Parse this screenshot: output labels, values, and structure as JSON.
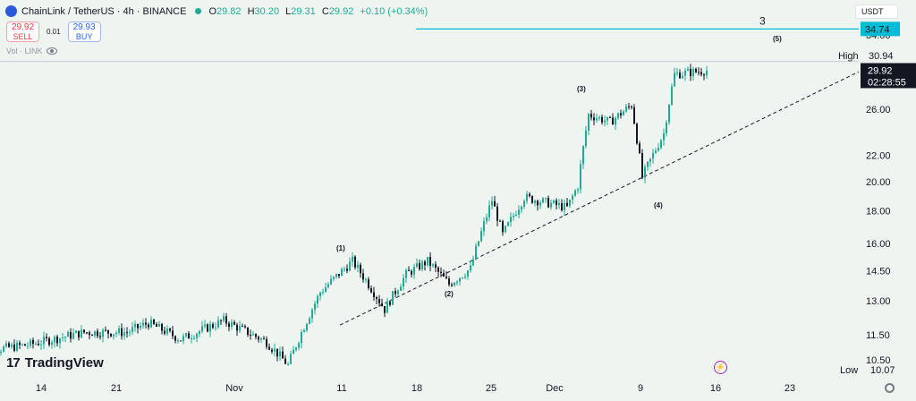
{
  "header": {
    "symbol_title": "ChainLink / TetherUS · 4h · BINANCE",
    "ohlc": [
      {
        "k": "O",
        "v": "29.82"
      },
      {
        "k": "H",
        "v": "30.20"
      },
      {
        "k": "L",
        "v": "29.31"
      },
      {
        "k": "C",
        "v": "29.92"
      }
    ],
    "change": "+0.10 (+0.34%)"
  },
  "trade": {
    "sell_price": "29.92",
    "sell_label": "SELL",
    "spread": "0.01",
    "buy_price": "29.93",
    "buy_label": "BUY"
  },
  "volume_label": "Vol · LINK",
  "currency": "USDT",
  "brand": "TradingView",
  "brand_mark": "17",
  "price_axis": {
    "ticks": [
      "34.00",
      "26.00",
      "22.00",
      "20.00",
      "18.00",
      "16.00",
      "14.50",
      "13.00",
      "11.50",
      "10.50"
    ],
    "high_label": "High",
    "high_value": "30.94",
    "low_label": "Low",
    "low_value": "10.07",
    "current_price": "29.92",
    "countdown": "02:28:55",
    "target_value": "34.74"
  },
  "time_axis": {
    "ticks": [
      "14",
      "21",
      "Nov",
      "11",
      "18",
      "25",
      "Dec",
      "9",
      "16",
      "23"
    ]
  },
  "annotations": {
    "wave_1": "(1)",
    "wave_2": "(2)",
    "wave_3": "(3)",
    "wave_4": "(4)",
    "wave_5": "(5)",
    "target_label": "3"
  },
  "colors": {
    "up": "#22ab94",
    "down": "#131722",
    "target_line": "#00bcd4",
    "background": "#eef5f1"
  },
  "chart_data": {
    "type": "candlestick",
    "title": "ChainLink / TetherUS · 4h · BINANCE",
    "x_ticks": [
      "14",
      "21",
      "Nov",
      "11",
      "18",
      "25",
      "Dec",
      "9",
      "16",
      "23"
    ],
    "y_ticks": [
      34.0,
      26.0,
      22.0,
      20.0,
      18.0,
      16.0,
      14.5,
      13.0,
      11.5,
      10.5
    ],
    "ylim": [
      9.8,
      36.5
    ],
    "y_scale": "log",
    "last": {
      "open": 29.82,
      "high": 30.2,
      "low": 29.31,
      "close": 29.92
    },
    "period_high": 30.94,
    "period_low": 10.07,
    "target": 34.74,
    "path_points": [
      {
        "x": "Oct 8",
        "y": 10.8
      },
      {
        "x": "Oct 13",
        "y": 11.1
      },
      {
        "x": "Oct 18",
        "y": 11.6
      },
      {
        "x": "Oct 22",
        "y": 11.6
      },
      {
        "x": "Oct 24",
        "y": 12.0
      },
      {
        "x": "Oct 27",
        "y": 11.3
      },
      {
        "x": "Oct 31",
        "y": 12.1
      },
      {
        "x": "Nov 4",
        "y": 11.2
      },
      {
        "x": "Nov 6",
        "y": 10.3
      },
      {
        "x": "Nov 9",
        "y": 13.4
      },
      {
        "x": "Nov 12",
        "y": 15.0
      },
      {
        "x": "Nov 15",
        "y": 12.6
      },
      {
        "x": "Nov 17",
        "y": 14.3
      },
      {
        "x": "Nov 19",
        "y": 15.0
      },
      {
        "x": "Nov 21",
        "y": 13.8
      },
      {
        "x": "Nov 23",
        "y": 14.6
      },
      {
        "x": "Nov 25",
        "y": 18.7
      },
      {
        "x": "Nov 26",
        "y": 16.5
      },
      {
        "x": "Nov 28",
        "y": 18.9
      },
      {
        "x": "Dec 2",
        "y": 18.2
      },
      {
        "x": "Dec 3",
        "y": 19.7
      },
      {
        "x": "Dec 4",
        "y": 25.5
      },
      {
        "x": "Dec 6",
        "y": 24.8
      },
      {
        "x": "Dec 8",
        "y": 26.4
      },
      {
        "x": "Dec 9",
        "y": 20.3
      },
      {
        "x": "Dec 11",
        "y": 23.8
      },
      {
        "x": "Dec 12",
        "y": 29.5
      },
      {
        "x": "Dec 15",
        "y": 29.9
      }
    ],
    "trendline": [
      {
        "x": "Nov 15",
        "y": 12.7
      },
      {
        "x": "Dec 25",
        "y": 29.0
      }
    ]
  }
}
